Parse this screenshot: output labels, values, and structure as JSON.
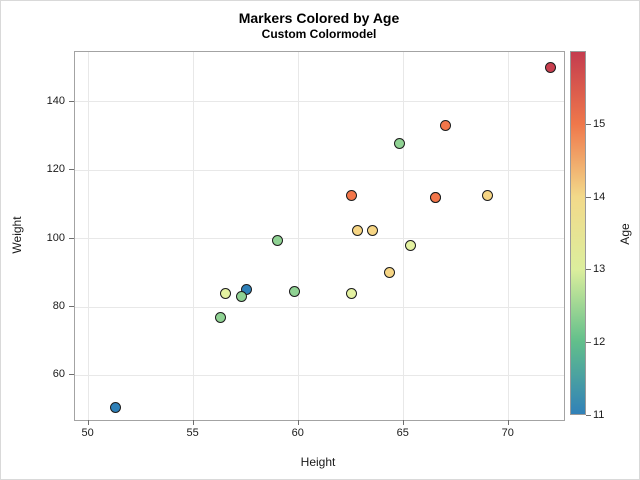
{
  "title": "Markers Colored by Age",
  "subtitle": "Custom Colormodel",
  "x_axis": {
    "label": "Height",
    "ticks": [
      50,
      55,
      60,
      65,
      70
    ],
    "range": [
      49.35,
      72.63
    ]
  },
  "y_axis": {
    "label": "Weight",
    "ticks": [
      60,
      80,
      100,
      120,
      140
    ],
    "range": [
      46.95,
      154.63
    ]
  },
  "legend": {
    "label": "Age",
    "min": 11,
    "max": 16,
    "ticks": [
      11,
      12,
      13,
      14,
      15
    ],
    "gradient": [
      {
        "value": 11,
        "color": "#3181b8"
      },
      {
        "value": 12,
        "color": "#62bf8b"
      },
      {
        "value": 13,
        "color": "#dcee9d"
      },
      {
        "value": 14,
        "color": "#f2d98a"
      },
      {
        "value": 15,
        "color": "#ef784b"
      },
      {
        "value": 16,
        "color": "#c43c4e"
      }
    ]
  },
  "age_colors": {
    "11": "#2e80b8",
    "12": "#8fd293",
    "13": "#e4f2a1",
    "14": "#f6d584",
    "15": "#f3764a",
    "16": "#c83f4f"
  },
  "colors": {
    "background": "#ffffff",
    "figure_border": "#d9d9d9",
    "plot_frame": "#a3a3a3",
    "grid": "#e8e8e8",
    "tick": "#6e6e6e",
    "text": "#1a1a1a",
    "marker_outline": "#1c1c1c"
  },
  "chart_data": {
    "type": "scatter",
    "title": "Markers Colored by Age",
    "subtitle": "Custom Colormodel",
    "xlabel": "Height",
    "ylabel": "Weight",
    "color_label": "Age",
    "xlim": [
      49.35,
      72.63
    ],
    "ylim": [
      46.95,
      154.63
    ],
    "xticks": [
      50,
      55,
      60,
      65,
      70
    ],
    "yticks": [
      60,
      80,
      100,
      120,
      140
    ],
    "grid": true,
    "legend_position": "right-colorbar",
    "color_range": [
      11,
      16
    ],
    "points": [
      {
        "height": 51.3,
        "weight": 50.5,
        "age": 11
      },
      {
        "height": 57.5,
        "weight": 85.0,
        "age": 11
      },
      {
        "height": 56.3,
        "weight": 77.0,
        "age": 12
      },
      {
        "height": 57.3,
        "weight": 83.0,
        "age": 12
      },
      {
        "height": 59.0,
        "weight": 99.5,
        "age": 12
      },
      {
        "height": 59.8,
        "weight": 84.5,
        "age": 12
      },
      {
        "height": 64.8,
        "weight": 128.0,
        "age": 12
      },
      {
        "height": 56.5,
        "weight": 84.0,
        "age": 13
      },
      {
        "height": 62.5,
        "weight": 84.0,
        "age": 13
      },
      {
        "height": 65.3,
        "weight": 98.0,
        "age": 13
      },
      {
        "height": 62.8,
        "weight": 102.5,
        "age": 14
      },
      {
        "height": 63.5,
        "weight": 102.5,
        "age": 14
      },
      {
        "height": 64.3,
        "weight": 90.0,
        "age": 14
      },
      {
        "height": 69.0,
        "weight": 112.5,
        "age": 14
      },
      {
        "height": 62.5,
        "weight": 112.5,
        "age": 15
      },
      {
        "height": 66.5,
        "weight": 112.0,
        "age": 15
      },
      {
        "height": 66.5,
        "weight": 112.0,
        "age": 15
      },
      {
        "height": 67.0,
        "weight": 133.0,
        "age": 15
      },
      {
        "height": 72.0,
        "weight": 150.0,
        "age": 16
      }
    ]
  }
}
